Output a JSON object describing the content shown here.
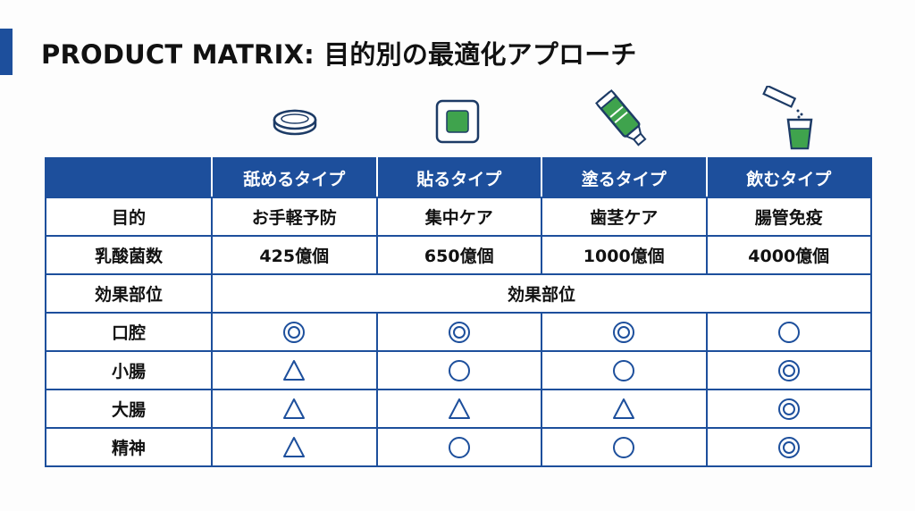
{
  "title": "PRODUCT MATRIX: 目的別の最適化アプローチ",
  "colors": {
    "accent": "#1d4f9c",
    "header_text": "#ffffff",
    "green": "#3fa34d",
    "line": "#1d4f9c"
  },
  "product_icons": [
    "lozenge-icon",
    "patch-icon",
    "toothpaste-tube-icon",
    "drink-stick-cup-icon"
  ],
  "table": {
    "header": [
      "",
      "舐めるタイプ",
      "貼るタイプ",
      "塗るタイプ",
      "飲むタイプ"
    ],
    "rows": [
      {
        "label": "目的",
        "cells": [
          "お手軽予防",
          "集中ケア",
          "歯茎ケア",
          "腸管免疫"
        ]
      },
      {
        "label": "乳酸菌数",
        "cells": [
          "425億個",
          "650億個",
          "1000億個",
          "4000億個"
        ]
      }
    ],
    "section": {
      "label": "効果部位",
      "span_text": "効果部位"
    },
    "effect_rows": [
      {
        "label": "口腔",
        "marks": [
          "double-circle",
          "double-circle",
          "double-circle",
          "circle"
        ]
      },
      {
        "label": "小腸",
        "marks": [
          "triangle",
          "circle",
          "circle",
          "double-circle"
        ]
      },
      {
        "label": "大腸",
        "marks": [
          "triangle",
          "triangle",
          "triangle",
          "double-circle"
        ]
      },
      {
        "label": "精神",
        "marks": [
          "triangle",
          "circle",
          "circle",
          "double-circle"
        ]
      }
    ]
  }
}
